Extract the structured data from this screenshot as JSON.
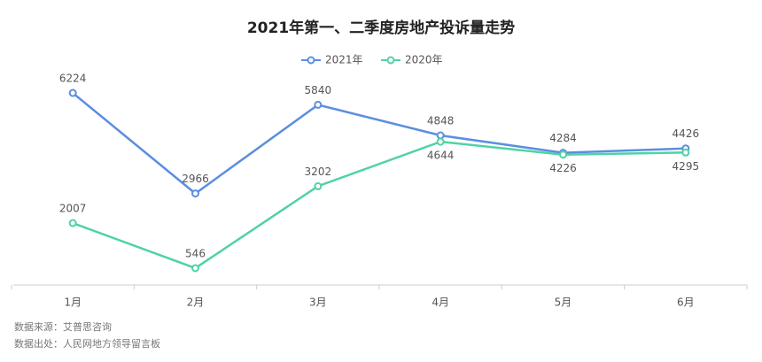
{
  "chart_data": {
    "type": "line",
    "title": "2021年第一、二季度房地产投诉量走势",
    "categories": [
      "1月",
      "2月",
      "3月",
      "4月",
      "5月",
      "6月"
    ],
    "series": [
      {
        "name": "2021年",
        "color": "#5b8ee0",
        "values": [
          6224,
          2966,
          5840,
          4848,
          4284,
          4426
        ]
      },
      {
        "name": "2020年",
        "color": "#4fd3a3",
        "values": [
          2007,
          546,
          3202,
          4644,
          4226,
          4295
        ]
      }
    ],
    "ylim": [
      0,
      7000
    ],
    "legend": "top",
    "source": [
      "数据来源：艾普思咨询",
      "数据出处：人民网地方领导留言板"
    ]
  }
}
